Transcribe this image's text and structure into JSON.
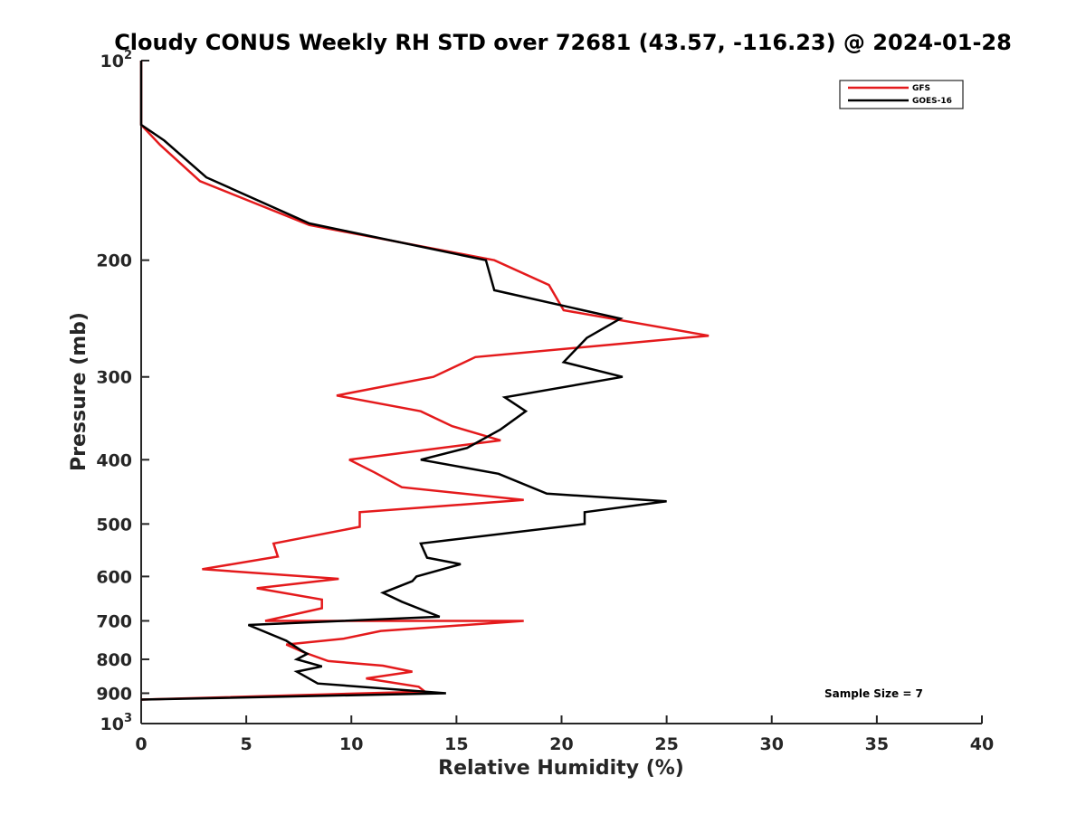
{
  "chart_data": {
    "type": "line",
    "title": "Cloudy CONUS Weekly RH STD over 72681 (43.57, -116.23) @ 2024-01-28",
    "xlabel": "Relative Humidity (%)",
    "ylabel": "Pressure (mb)",
    "xlim": [
      0,
      40
    ],
    "ylim": [
      100,
      1000
    ],
    "y_scale": "log",
    "y_reversed": true,
    "grid": false,
    "legend_position": "top-right",
    "x_ticks": [
      "0",
      "5",
      "10",
      "15",
      "20",
      "25",
      "30",
      "35",
      "40"
    ],
    "y_ticks": [
      {
        "value": 100,
        "base": "10",
        "exp": "2"
      },
      {
        "value": 200,
        "label": "200"
      },
      {
        "value": 300,
        "label": "300"
      },
      {
        "value": 400,
        "label": "400"
      },
      {
        "value": 500,
        "label": "500"
      },
      {
        "value": 600,
        "label": "600"
      },
      {
        "value": 700,
        "label": "700"
      },
      {
        "value": 800,
        "label": "800"
      },
      {
        "value": 900,
        "label": "900"
      },
      {
        "value": 1000,
        "base": "10",
        "exp": "3"
      }
    ],
    "series": [
      {
        "name": "GFS",
        "color": "#e41a1c",
        "points": [
          [
            0.0,
            100
          ],
          [
            0.0,
            125
          ],
          [
            0.9,
            134
          ],
          [
            2.8,
            152
          ],
          [
            8.0,
            177
          ],
          [
            16.8,
            200
          ],
          [
            19.4,
            218
          ],
          [
            20.1,
            238
          ],
          [
            27.0,
            260
          ],
          [
            15.9,
            280
          ],
          [
            13.9,
            300
          ],
          [
            9.3,
            320
          ],
          [
            13.3,
            338
          ],
          [
            14.8,
            356
          ],
          [
            17.1,
            374
          ],
          [
            9.9,
            400
          ],
          [
            11.1,
            418
          ],
          [
            12.4,
            440
          ],
          [
            18.2,
            460
          ],
          [
            10.4,
            480
          ],
          [
            10.4,
            505
          ],
          [
            6.3,
            535
          ],
          [
            6.5,
            560
          ],
          [
            2.9,
            585
          ],
          [
            9.4,
            605
          ],
          [
            5.5,
            625
          ],
          [
            8.6,
            650
          ],
          [
            8.6,
            670
          ],
          [
            5.9,
            700
          ],
          [
            18.2,
            700
          ],
          [
            11.4,
            725
          ],
          [
            9.6,
            745
          ],
          [
            6.9,
            760
          ],
          [
            7.7,
            780
          ],
          [
            8.9,
            805
          ],
          [
            11.5,
            818
          ],
          [
            12.9,
            835
          ],
          [
            10.7,
            855
          ],
          [
            13.2,
            880
          ],
          [
            13.5,
            895
          ],
          [
            0.0,
            920
          ]
        ]
      },
      {
        "name": "GOES-16",
        "color": "#000000",
        "points": [
          [
            0.0,
            100
          ],
          [
            0.0,
            125
          ],
          [
            1.1,
            132
          ],
          [
            3.1,
            150
          ],
          [
            8.0,
            176
          ],
          [
            16.4,
            200
          ],
          [
            16.8,
            222
          ],
          [
            22.8,
            245
          ],
          [
            21.2,
            262
          ],
          [
            20.1,
            285
          ],
          [
            22.9,
            300
          ],
          [
            17.3,
            322
          ],
          [
            18.3,
            338
          ],
          [
            17.1,
            360
          ],
          [
            15.5,
            384
          ],
          [
            13.3,
            400
          ],
          [
            17.0,
            420
          ],
          [
            19.3,
            450
          ],
          [
            25.0,
            462
          ],
          [
            21.1,
            480
          ],
          [
            21.1,
            500
          ],
          [
            13.3,
            535
          ],
          [
            13.6,
            562
          ],
          [
            15.2,
            575
          ],
          [
            13.1,
            600
          ],
          [
            12.9,
            610
          ],
          [
            11.5,
            635
          ],
          [
            12.4,
            655
          ],
          [
            14.2,
            690
          ],
          [
            5.1,
            710
          ],
          [
            6.9,
            750
          ],
          [
            7.6,
            775
          ],
          [
            7.9,
            785
          ],
          [
            7.4,
            800
          ],
          [
            8.6,
            820
          ],
          [
            7.4,
            835
          ],
          [
            8.4,
            870
          ],
          [
            14.5,
            900
          ],
          [
            0.0,
            920
          ]
        ]
      }
    ],
    "annotation": "Sample Size = 7"
  }
}
